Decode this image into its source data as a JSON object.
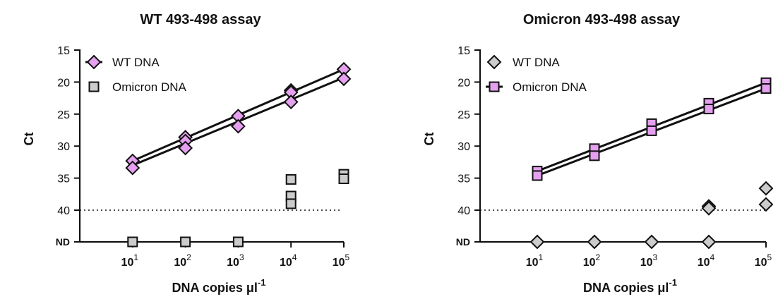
{
  "chart_data": [
    {
      "type": "scatter",
      "title": "WT 493-498 assay",
      "xlabel": "DNA copies",
      "xlabel_unit": "μl",
      "xlabel_exp": "-1",
      "ylabel": "Ct",
      "x_scale": "log10",
      "x_ticks": [
        {
          "base": "10",
          "exp": "1",
          "value": 10
        },
        {
          "base": "10",
          "exp": "2",
          "value": 100
        },
        {
          "base": "10",
          "exp": "3",
          "value": 1000
        },
        {
          "base": "10",
          "exp": "4",
          "value": 10000
        },
        {
          "base": "10",
          "exp": "5",
          "value": 100000
        }
      ],
      "y_reversed": true,
      "ylim": [
        15,
        45
      ],
      "y_ticks": [
        "15",
        "20",
        "25",
        "30",
        "35",
        "40"
      ],
      "nd_label": "ND",
      "nd_value": 45,
      "threshold": 40,
      "legend_position": "top-left",
      "grid": false,
      "series": [
        {
          "name": "WT DNA",
          "marker": "diamond",
          "color": "#e6a0f0",
          "fit": true,
          "points": [
            [
              10,
              32.3
            ],
            [
              10,
              33.4
            ],
            [
              100,
              28.6
            ],
            [
              100,
              29.2
            ],
            [
              100,
              30.3
            ],
            [
              1000,
              25.3
            ],
            [
              1000,
              26.9
            ],
            [
              10000,
              21.3
            ],
            [
              10000,
              21.6
            ],
            [
              10000,
              23.1
            ],
            [
              100000,
              18.0
            ],
            [
              100000,
              19.5
            ]
          ],
          "fit_lines": [
            [
              [
                10,
                32.3
              ],
              [
                100000,
                18.0
              ]
            ],
            [
              [
                10,
                33.0
              ],
              [
                100000,
                19.3
              ]
            ]
          ]
        },
        {
          "name": "Omicron DNA",
          "marker": "square",
          "color": "#cccccc",
          "fit": false,
          "points": [
            [
              10,
              45
            ],
            [
              100,
              45
            ],
            [
              1000,
              45
            ],
            [
              10000,
              35.2
            ],
            [
              10000,
              37.8
            ],
            [
              10000,
              39.0
            ],
            [
              100000,
              34.4
            ],
            [
              100000,
              35.1
            ]
          ]
        }
      ]
    },
    {
      "type": "scatter",
      "title": "Omicron 493-498 assay",
      "xlabel": "DNA copies",
      "xlabel_unit": "μl",
      "xlabel_exp": "-1",
      "ylabel": "Ct",
      "x_scale": "log10",
      "x_ticks": [
        {
          "base": "10",
          "exp": "1",
          "value": 10
        },
        {
          "base": "10",
          "exp": "2",
          "value": 100
        },
        {
          "base": "10",
          "exp": "3",
          "value": 1000
        },
        {
          "base": "10",
          "exp": "4",
          "value": 10000
        },
        {
          "base": "10",
          "exp": "5",
          "value": 100000
        }
      ],
      "y_reversed": true,
      "ylim": [
        15,
        45
      ],
      "y_ticks": [
        "15",
        "20",
        "25",
        "30",
        "35",
        "40"
      ],
      "nd_label": "ND",
      "nd_value": 45,
      "threshold": 40,
      "legend_position": "top-left",
      "grid": false,
      "series": [
        {
          "name": "WT DNA",
          "marker": "diamond",
          "color": "#cccccc",
          "fit": false,
          "points": [
            [
              10,
              45
            ],
            [
              100,
              45
            ],
            [
              1000,
              45
            ],
            [
              10000,
              45
            ],
            [
              10000,
              39.4
            ],
            [
              10000,
              39.7
            ],
            [
              100000,
              36.6
            ],
            [
              100000,
              39.1
            ]
          ]
        },
        {
          "name": "Omicron DNA",
          "marker": "square",
          "color": "#e6a0f0",
          "fit": true,
          "points": [
            [
              10,
              33.9
            ],
            [
              10,
              34.6
            ],
            [
              100,
              30.4
            ],
            [
              100,
              31.5
            ],
            [
              1000,
              26.5
            ],
            [
              1000,
              27.6
            ],
            [
              10000,
              23.3
            ],
            [
              10000,
              24.2
            ],
            [
              100000,
              20.1
            ],
            [
              100000,
              21.0
            ]
          ],
          "fit_lines": [
            [
              [
                10,
                33.9
              ],
              [
                100000,
                20.1
              ]
            ],
            [
              [
                10,
                34.6
              ],
              [
                100000,
                21.0
              ]
            ]
          ]
        }
      ]
    }
  ]
}
